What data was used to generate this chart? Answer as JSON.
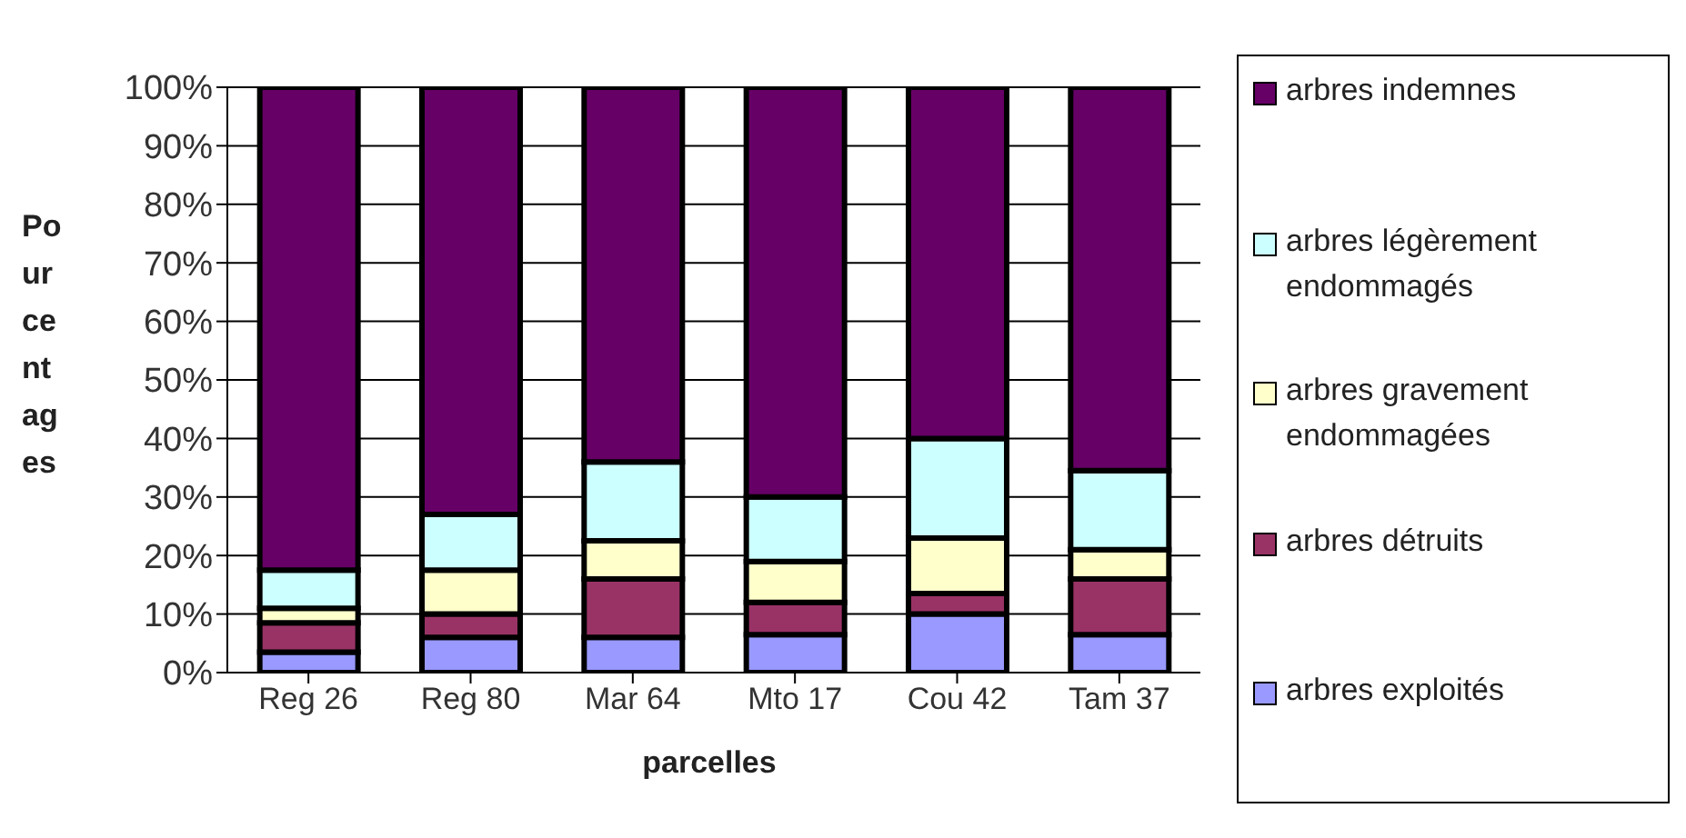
{
  "chart_data": {
    "type": "bar",
    "stacked": true,
    "xlabel": "parcelles",
    "ylabel": "Pourcentages",
    "categories": [
      "Reg 26",
      "Reg 80",
      "Mar 64",
      "Mto 17",
      "Cou 42",
      "Tam 37"
    ],
    "series": [
      {
        "name": "arbres exploités",
        "color": "#9999ff",
        "values": [
          3.5,
          6,
          6,
          6.5,
          10,
          6.5
        ]
      },
      {
        "name": "arbres détruits",
        "color": "#993366",
        "values": [
          5,
          4,
          10,
          5.5,
          3.5,
          9.5
        ]
      },
      {
        "name": "arbres gravement endommagées",
        "color": "#ffffcc",
        "values": [
          2.5,
          7.5,
          6.5,
          7,
          9.5,
          5
        ]
      },
      {
        "name": "arbres légèrement endommagés",
        "color": "#ccffff",
        "values": [
          6.5,
          9.5,
          13.5,
          11,
          17,
          13.5
        ]
      },
      {
        "name": "arbres indemnes",
        "color": "#660066",
        "values": [
          82.5,
          73,
          64,
          70,
          60,
          65.5
        ]
      }
    ],
    "ylim": [
      0,
      100
    ],
    "yticks": [
      {
        "value": 0,
        "label": "0%"
      },
      {
        "value": 10,
        "label": "10%"
      },
      {
        "value": 20,
        "label": "20%"
      },
      {
        "value": 30,
        "label": "30%"
      },
      {
        "value": 40,
        "label": "40%"
      },
      {
        "value": 50,
        "label": "50%"
      },
      {
        "value": 60,
        "label": "60%"
      },
      {
        "value": 70,
        "label": "70%"
      },
      {
        "value": 80,
        "label": "80%"
      },
      {
        "value": 90,
        "label": "90%"
      },
      {
        "value": 100,
        "label": "100%"
      }
    ],
    "grid": "y",
    "legend": "right"
  }
}
